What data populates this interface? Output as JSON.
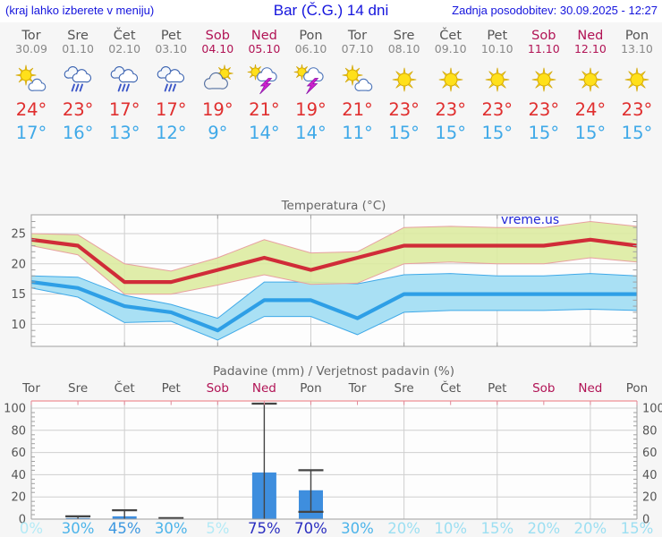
{
  "header": {
    "left_note": "(kraj lahko izberete v meniju)",
    "title": "Bar (Č.G.) 14 dni",
    "updated": "Zadnja posodobitev: 30.09.2025 - 12:27"
  },
  "colors": {
    "header_blue": "#1414dd",
    "day_gray": "#555555",
    "date_gray": "#888888",
    "weekend": "#b11355",
    "tmax_red": "#e02f2f",
    "tmin_blue": "#3fa9e8",
    "line_red": "#d02c38",
    "line_blue": "#2e9fe6",
    "band_green": "#dcea9e",
    "band_green_edge": "#e8a0a0",
    "band_blue": "#a9e0f4",
    "band_blue_edge": "#3fa9e8",
    "grid": "#cfcfcf",
    "frame": "#a0a0a0",
    "axis_label": "#555555",
    "chart_title": "#666666",
    "watermark_blue": "#2026d8",
    "bar_blue": "#3e8ede",
    "whisker": "#444444",
    "pink_axis": "#ef8f95",
    "pink_tick": "#e08898",
    "prob_vlow": "#b4eaf6",
    "prob_low": "#9cdff2",
    "prob_mid": "#4cb4ea",
    "prob_mid2": "#3c97e0",
    "prob_high": "#2a2ec0"
  },
  "days": [
    {
      "name": "Tor",
      "date": "30.09",
      "weekend": false,
      "icon": "sun-cloud",
      "tmax": "24°",
      "tmin": "17°"
    },
    {
      "name": "Sre",
      "date": "01.10",
      "weekend": false,
      "icon": "rain",
      "tmax": "23°",
      "tmin": "16°"
    },
    {
      "name": "Čet",
      "date": "02.10",
      "weekend": false,
      "icon": "rain",
      "tmax": "17°",
      "tmin": "13°"
    },
    {
      "name": "Pet",
      "date": "03.10",
      "weekend": false,
      "icon": "rain",
      "tmax": "17°",
      "tmin": "12°"
    },
    {
      "name": "Sob",
      "date": "04.10",
      "weekend": true,
      "icon": "cloud-sun",
      "tmax": "19°",
      "tmin": "9°"
    },
    {
      "name": "Ned",
      "date": "05.10",
      "weekend": true,
      "icon": "storm",
      "tmax": "21°",
      "tmin": "14°"
    },
    {
      "name": "Pon",
      "date": "06.10",
      "weekend": false,
      "icon": "storm",
      "tmax": "19°",
      "tmin": "14°"
    },
    {
      "name": "Tor",
      "date": "07.10",
      "weekend": false,
      "icon": "sun-cloud",
      "tmax": "21°",
      "tmin": "11°"
    },
    {
      "name": "Sre",
      "date": "08.10",
      "weekend": false,
      "icon": "sun",
      "tmax": "23°",
      "tmin": "15°"
    },
    {
      "name": "Čet",
      "date": "09.10",
      "weekend": false,
      "icon": "sun",
      "tmax": "23°",
      "tmin": "15°"
    },
    {
      "name": "Pet",
      "date": "10.10",
      "weekend": false,
      "icon": "sun",
      "tmax": "23°",
      "tmin": "15°"
    },
    {
      "name": "Sob",
      "date": "11.10",
      "weekend": true,
      "icon": "sun",
      "tmax": "23°",
      "tmin": "15°"
    },
    {
      "name": "Ned",
      "date": "12.10",
      "weekend": true,
      "icon": "sun",
      "tmax": "24°",
      "tmin": "15°"
    },
    {
      "name": "Pon",
      "date": "13.10",
      "weekend": false,
      "icon": "sun",
      "tmax": "23°",
      "tmin": "15°"
    }
  ],
  "chart_data": [
    {
      "type": "line",
      "title": "Temperatura (°C)",
      "watermark": "vreme.us",
      "categories": [
        "Tor",
        "Sre",
        "Čet",
        "Pet",
        "Sob",
        "Ned",
        "Pon",
        "Tor",
        "Sre",
        "Čet",
        "Pet",
        "Sob",
        "Ned",
        "Pon"
      ],
      "yticks": [
        10,
        15,
        20,
        25
      ],
      "ylim": [
        6.4,
        28.1
      ],
      "grid": true,
      "series": [
        {
          "name": "tmax",
          "values": [
            24,
            23,
            17,
            17,
            19,
            21,
            19,
            21,
            23,
            23,
            23,
            23,
            24,
            23
          ]
        },
        {
          "name": "tmax_band_upper",
          "values": [
            25,
            24.8,
            20,
            18.8,
            21,
            24,
            21.8,
            22,
            26,
            26.2,
            26,
            26,
            27,
            26.2
          ]
        },
        {
          "name": "tmax_band_lower",
          "values": [
            23,
            21.5,
            15,
            15,
            16.5,
            18.2,
            16.6,
            16.8,
            20,
            20.3,
            20,
            20,
            21,
            20.3
          ]
        },
        {
          "name": "tmin",
          "values": [
            17,
            16,
            13,
            12,
            9,
            14,
            14,
            11,
            15,
            15,
            15,
            15,
            15,
            15
          ]
        },
        {
          "name": "tmin_band_upper",
          "values": [
            18,
            17.8,
            14.8,
            13.3,
            11,
            17,
            17,
            16.7,
            18.2,
            18.4,
            18,
            18,
            18.4,
            18
          ]
        },
        {
          "name": "tmin_band_lower",
          "values": [
            16,
            14.5,
            10.3,
            10.5,
            7.4,
            11.3,
            11.3,
            8.3,
            12,
            12.3,
            12.3,
            12.3,
            12.5,
            12.3
          ]
        }
      ]
    },
    {
      "type": "bar",
      "title": "Padavine (mm) / Verjetnost padavin (%)",
      "categories": [
        "Tor",
        "Sre",
        "Čet",
        "Pet",
        "Sob",
        "Ned",
        "Pon",
        "Tor",
        "Sre",
        "Čet",
        "Pet",
        "Sob",
        "Ned",
        "Pon"
      ],
      "weekend_flags": [
        false,
        false,
        false,
        false,
        true,
        true,
        false,
        false,
        false,
        false,
        false,
        true,
        true,
        false
      ],
      "yticks": [
        0,
        20,
        40,
        60,
        80,
        100
      ],
      "ylim": [
        0,
        106
      ],
      "grid": true,
      "values": [
        0,
        1,
        2.5,
        0.5,
        0,
        42,
        26,
        0,
        0,
        0,
        0,
        0,
        0,
        0
      ],
      "whisker_top": [
        null,
        2.5,
        8,
        1,
        null,
        104,
        44,
        null,
        null,
        null,
        null,
        null,
        null,
        null
      ],
      "whisker_bottom": [
        null,
        0,
        0,
        0,
        null,
        0,
        6.5,
        null,
        null,
        null,
        null,
        null,
        null,
        null
      ],
      "probabilities": [
        "0%",
        "30%",
        "45%",
        "30%",
        "5%",
        "75%",
        "70%",
        "30%",
        "20%",
        "10%",
        "15%",
        "20%",
        "20%",
        "15%"
      ]
    }
  ]
}
